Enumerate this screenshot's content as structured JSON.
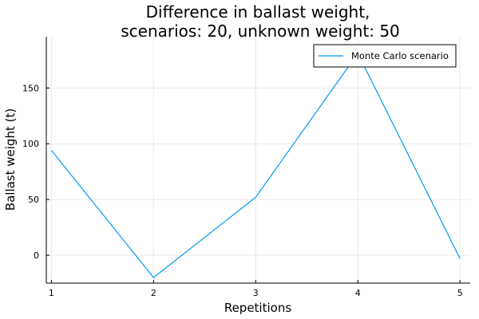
{
  "chart_data": {
    "type": "line",
    "title_line1": "Difference in ballast weight,",
    "title_line2": "scenarios: 20, unknown weight: 50",
    "xlabel": "Repetitions",
    "ylabel": "Ballast weight (t)",
    "x": [
      1,
      2,
      3,
      4,
      5
    ],
    "x_ticks": [
      1,
      2,
      3,
      4,
      5
    ],
    "y_ticks": [
      0,
      50,
      100,
      150
    ],
    "xlim": [
      0.95,
      5.1
    ],
    "ylim": [
      -25,
      196
    ],
    "grid": true,
    "legend_position": "top-right",
    "series": [
      {
        "name": "Monte Carlo scenario",
        "color": "#009AFA",
        "values": [
          94,
          -20,
          52,
          181,
          -3
        ]
      }
    ]
  }
}
